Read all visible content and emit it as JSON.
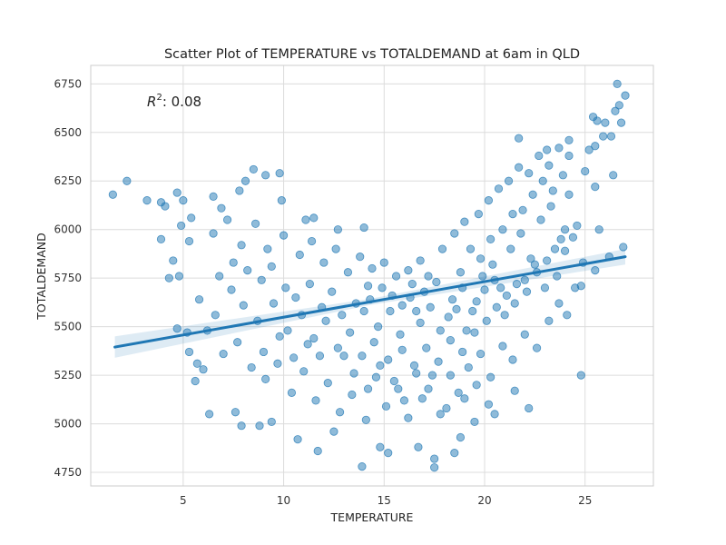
{
  "chart_data": {
    "type": "scatter",
    "title": "Scatter Plot of TEMPERATURE vs TOTALDEMAND at 6am in QLD",
    "xlabel": "TEMPERATURE",
    "ylabel": "TOTALDEMAND",
    "annotation": {
      "r2_symbol": "R",
      "r2_exponent": "2",
      "r2_value": ": 0.08"
    },
    "xlim": [
      0.4,
      28.4
    ],
    "ylim": [
      4680,
      6845
    ],
    "x_ticks": [
      5,
      10,
      15,
      20,
      25
    ],
    "y_ticks": [
      4750,
      5000,
      5250,
      5500,
      5750,
      6000,
      6250,
      6500,
      6750
    ],
    "grid": true,
    "point_color": "#1f77b4",
    "regression_line": {
      "x": [
        1.6,
        27.0
      ],
      "y": [
        5395,
        5860
      ],
      "ci_halfwidth": 40
    },
    "points": [
      [
        1.5,
        6180
      ],
      [
        2.2,
        6250
      ],
      [
        3.2,
        6150
      ],
      [
        3.9,
        6140
      ],
      [
        4.7,
        6190
      ],
      [
        5.0,
        6150
      ],
      [
        4.1,
        6120
      ],
      [
        4.9,
        6020
      ],
      [
        5.4,
        6060
      ],
      [
        6.5,
        6170
      ],
      [
        6.9,
        6110
      ],
      [
        7.8,
        6200
      ],
      [
        8.1,
        6250
      ],
      [
        8.5,
        6310
      ],
      [
        9.1,
        6280
      ],
      [
        9.8,
        6290
      ],
      [
        9.9,
        6150
      ],
      [
        11.1,
        6050
      ],
      [
        11.5,
        6060
      ],
      [
        12.7,
        6000
      ],
      [
        14.0,
        6010
      ],
      [
        3.9,
        5950
      ],
      [
        4.5,
        5840
      ],
      [
        4.8,
        5760
      ],
      [
        5.3,
        5940
      ],
      [
        4.3,
        5750
      ],
      [
        4.7,
        5490
      ],
      [
        5.2,
        5470
      ],
      [
        5.3,
        5370
      ],
      [
        5.7,
        5310
      ],
      [
        5.6,
        5220
      ],
      [
        6.0,
        5280
      ],
      [
        6.3,
        5050
      ],
      [
        7.6,
        5060
      ],
      [
        7.9,
        4990
      ],
      [
        8.8,
        4990
      ],
      [
        9.4,
        5010
      ],
      [
        10.7,
        4920
      ],
      [
        11.7,
        4860
      ],
      [
        12.5,
        4960
      ],
      [
        13.9,
        4780
      ],
      [
        14.8,
        4880
      ],
      [
        15.2,
        4850
      ],
      [
        16.7,
        4880
      ],
      [
        17.5,
        4820
      ],
      [
        17.5,
        4775
      ],
      [
        18.5,
        4850
      ],
      [
        18.8,
        4930
      ],
      [
        19.5,
        5010
      ],
      [
        20.5,
        5050
      ],
      [
        21.5,
        5170
      ],
      [
        22.2,
        5080
      ],
      [
        24.8,
        5250
      ],
      [
        25.5,
        5790
      ],
      [
        26.9,
        5910
      ],
      [
        26.2,
        5860
      ],
      [
        25.7,
        6000
      ],
      [
        25.5,
        6220
      ],
      [
        26.4,
        6280
      ],
      [
        25.5,
        6430
      ],
      [
        25.2,
        6410
      ],
      [
        25.9,
        6480
      ],
      [
        25.4,
        6580
      ],
      [
        25.6,
        6560
      ],
      [
        26.0,
        6550
      ],
      [
        26.3,
        6480
      ],
      [
        26.8,
        6550
      ],
      [
        26.5,
        6610
      ],
      [
        27.0,
        6690
      ],
      [
        26.6,
        6750
      ],
      [
        26.7,
        6640
      ],
      [
        24.8,
        5710
      ],
      [
        21.7,
        6470
      ],
      [
        23.1,
        6410
      ],
      [
        24.2,
        6380
      ],
      [
        6.8,
        5760
      ],
      [
        7.5,
        5830
      ],
      [
        8.2,
        5790
      ],
      [
        8.9,
        5740
      ],
      [
        9.4,
        5810
      ],
      [
        10.1,
        5700
      ],
      [
        10.6,
        5650
      ],
      [
        11.3,
        5720
      ],
      [
        11.9,
        5600
      ],
      [
        12.4,
        5680
      ],
      [
        12.9,
        5560
      ],
      [
        13.6,
        5620
      ],
      [
        14.2,
        5710
      ],
      [
        14.7,
        5500
      ],
      [
        15.3,
        5580
      ],
      [
        15.8,
        5460
      ],
      [
        16.3,
        5650
      ],
      [
        16.8,
        5520
      ],
      [
        17.3,
        5600
      ],
      [
        17.8,
        5480
      ],
      [
        18.4,
        5640
      ],
      [
        18.9,
        5700
      ],
      [
        19.4,
        5580
      ],
      [
        19.9,
        5760
      ],
      [
        20.4,
        5820
      ],
      [
        20.8,
        5700
      ],
      [
        21.3,
        5900
      ],
      [
        21.8,
        5980
      ],
      [
        22.3,
        5850
      ],
      [
        22.8,
        6050
      ],
      [
        23.3,
        6120
      ],
      [
        23.8,
        5950
      ],
      [
        24.2,
        6180
      ],
      [
        24.6,
        6020
      ],
      [
        25.0,
        6300
      ],
      [
        6.2,
        5480
      ],
      [
        7.0,
        5360
      ],
      [
        7.7,
        5420
      ],
      [
        8.4,
        5290
      ],
      [
        9.1,
        5230
      ],
      [
        9.7,
        5310
      ],
      [
        10.4,
        5160
      ],
      [
        11.0,
        5270
      ],
      [
        11.6,
        5120
      ],
      [
        12.2,
        5210
      ],
      [
        12.8,
        5060
      ],
      [
        13.4,
        5150
      ],
      [
        14.1,
        5020
      ],
      [
        14.6,
        5240
      ],
      [
        15.1,
        5090
      ],
      [
        15.7,
        5180
      ],
      [
        16.2,
        5030
      ],
      [
        16.9,
        5130
      ],
      [
        17.4,
        5250
      ],
      [
        18.1,
        5080
      ],
      [
        18.7,
        5160
      ],
      [
        19.2,
        5290
      ],
      [
        19.8,
        5360
      ],
      [
        20.3,
        5240
      ],
      [
        20.9,
        5400
      ],
      [
        21.4,
        5330
      ],
      [
        22.0,
        5460
      ],
      [
        22.6,
        5390
      ],
      [
        23.2,
        5530
      ],
      [
        23.7,
        5620
      ],
      [
        24.1,
        5560
      ],
      [
        24.5,
        5700
      ],
      [
        24.9,
        5830
      ],
      [
        6.5,
        5980
      ],
      [
        7.2,
        6050
      ],
      [
        7.9,
        5920
      ],
      [
        8.6,
        6030
      ],
      [
        9.2,
        5900
      ],
      [
        10.0,
        5970
      ],
      [
        10.8,
        5870
      ],
      [
        11.4,
        5940
      ],
      [
        12.0,
        5830
      ],
      [
        12.6,
        5900
      ],
      [
        13.2,
        5780
      ],
      [
        13.8,
        5860
      ],
      [
        14.4,
        5800
      ],
      [
        15.0,
        5830
      ],
      [
        15.6,
        5760
      ],
      [
        16.2,
        5790
      ],
      [
        16.8,
        5840
      ],
      [
        17.2,
        5760
      ],
      [
        17.9,
        5900
      ],
      [
        18.5,
        5980
      ],
      [
        19.0,
        6040
      ],
      [
        19.7,
        6080
      ],
      [
        20.2,
        6150
      ],
      [
        20.7,
        6210
      ],
      [
        21.2,
        6250
      ],
      [
        21.7,
        6320
      ],
      [
        22.2,
        6290
      ],
      [
        22.7,
        6380
      ],
      [
        23.2,
        6330
      ],
      [
        23.7,
        6420
      ],
      [
        24.2,
        6460
      ],
      [
        5.8,
        5640
      ],
      [
        6.6,
        5560
      ],
      [
        7.4,
        5690
      ],
      [
        8.0,
        5610
      ],
      [
        8.7,
        5530
      ],
      [
        9.5,
        5620
      ],
      [
        10.2,
        5480
      ],
      [
        10.9,
        5560
      ],
      [
        11.5,
        5440
      ],
      [
        12.1,
        5530
      ],
      [
        12.7,
        5390
      ],
      [
        13.3,
        5470
      ],
      [
        13.9,
        5350
      ],
      [
        14.5,
        5420
      ],
      [
        15.2,
        5330
      ],
      [
        15.9,
        5380
      ],
      [
        16.5,
        5300
      ],
      [
        17.1,
        5390
      ],
      [
        17.7,
        5320
      ],
      [
        18.3,
        5430
      ],
      [
        18.9,
        5370
      ],
      [
        19.5,
        5470
      ],
      [
        20.1,
        5530
      ],
      [
        20.6,
        5600
      ],
      [
        21.1,
        5660
      ],
      [
        21.6,
        5720
      ],
      [
        22.1,
        5680
      ],
      [
        22.6,
        5780
      ],
      [
        23.1,
        5840
      ],
      [
        23.6,
        5760
      ],
      [
        24.0,
        5890
      ],
      [
        24.4,
        5960
      ],
      [
        14.0,
        5580
      ],
      [
        14.3,
        5640
      ],
      [
        14.9,
        5700
      ],
      [
        15.4,
        5660
      ],
      [
        15.9,
        5610
      ],
      [
        16.4,
        5720
      ],
      [
        16.6,
        5580
      ],
      [
        17.0,
        5680
      ],
      [
        17.6,
        5730
      ],
      [
        18.2,
        5550
      ],
      [
        18.6,
        5590
      ],
      [
        19.1,
        5480
      ],
      [
        19.6,
        5630
      ],
      [
        20.0,
        5690
      ],
      [
        20.5,
        5740
      ],
      [
        21.0,
        5560
      ],
      [
        21.5,
        5620
      ],
      [
        22.0,
        5740
      ],
      [
        22.5,
        5820
      ],
      [
        23.0,
        5700
      ],
      [
        23.5,
        5900
      ],
      [
        24.0,
        6000
      ],
      [
        21.9,
        6100
      ],
      [
        22.4,
        6180
      ],
      [
        22.9,
        6250
      ],
      [
        23.4,
        6200
      ],
      [
        23.9,
        6280
      ],
      [
        20.9,
        6000
      ],
      [
        21.4,
        6080
      ],
      [
        19.3,
        5900
      ],
      [
        19.8,
        5850
      ],
      [
        20.3,
        5950
      ],
      [
        18.8,
        5780
      ],
      [
        13.0,
        5350
      ],
      [
        13.5,
        5260
      ],
      [
        14.2,
        5180
      ],
      [
        14.8,
        5300
      ],
      [
        15.5,
        5220
      ],
      [
        16.0,
        5120
      ],
      [
        16.6,
        5260
      ],
      [
        17.2,
        5180
      ],
      [
        17.8,
        5050
      ],
      [
        18.3,
        5250
      ],
      [
        19.0,
        5130
      ],
      [
        19.6,
        5200
      ],
      [
        20.2,
        5100
      ],
      [
        11.8,
        5350
      ],
      [
        11.2,
        5410
      ],
      [
        10.5,
        5340
      ],
      [
        9.8,
        5450
      ],
      [
        9.0,
        5370
      ]
    ]
  }
}
